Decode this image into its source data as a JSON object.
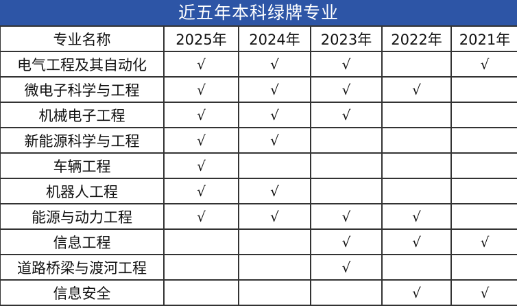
{
  "title": "近五年本科绿牌专业",
  "header": [
    "专业名称",
    "2025年",
    "2024年",
    "2023年",
    "2022年",
    "2021年"
  ],
  "check_mark": "√",
  "rows": [
    {
      "name": "电气工程及其自动化",
      "marks": [
        "√",
        "√",
        "√",
        "",
        "√"
      ]
    },
    {
      "name": "微电子科学与工程",
      "marks": [
        "√",
        "√",
        "√",
        "√",
        ""
      ]
    },
    {
      "name": "机械电子工程",
      "marks": [
        "√",
        "√",
        "√",
        "",
        ""
      ]
    },
    {
      "name": "新能源科学与工程",
      "marks": [
        "√",
        "√",
        "",
        "",
        ""
      ]
    },
    {
      "name": "车辆工程",
      "marks": [
        "√",
        "",
        "",
        "",
        ""
      ]
    },
    {
      "name": "机器人工程",
      "marks": [
        "√",
        "√",
        "",
        "",
        ""
      ]
    },
    {
      "name": "能源与动力工程",
      "marks": [
        "√",
        "√",
        "√",
        "√",
        ""
      ]
    },
    {
      "name": "信息工程",
      "marks": [
        "",
        "",
        "√",
        "√",
        "√"
      ]
    },
    {
      "name": "道路桥梁与渡河工程",
      "marks": [
        "",
        "",
        "√",
        "",
        ""
      ]
    },
    {
      "name": "信息安全",
      "marks": [
        "",
        "",
        "",
        "√",
        "√"
      ]
    }
  ],
  "colors": {
    "title_bg": "#2d55a6",
    "title_text": "#ffffff"
  }
}
